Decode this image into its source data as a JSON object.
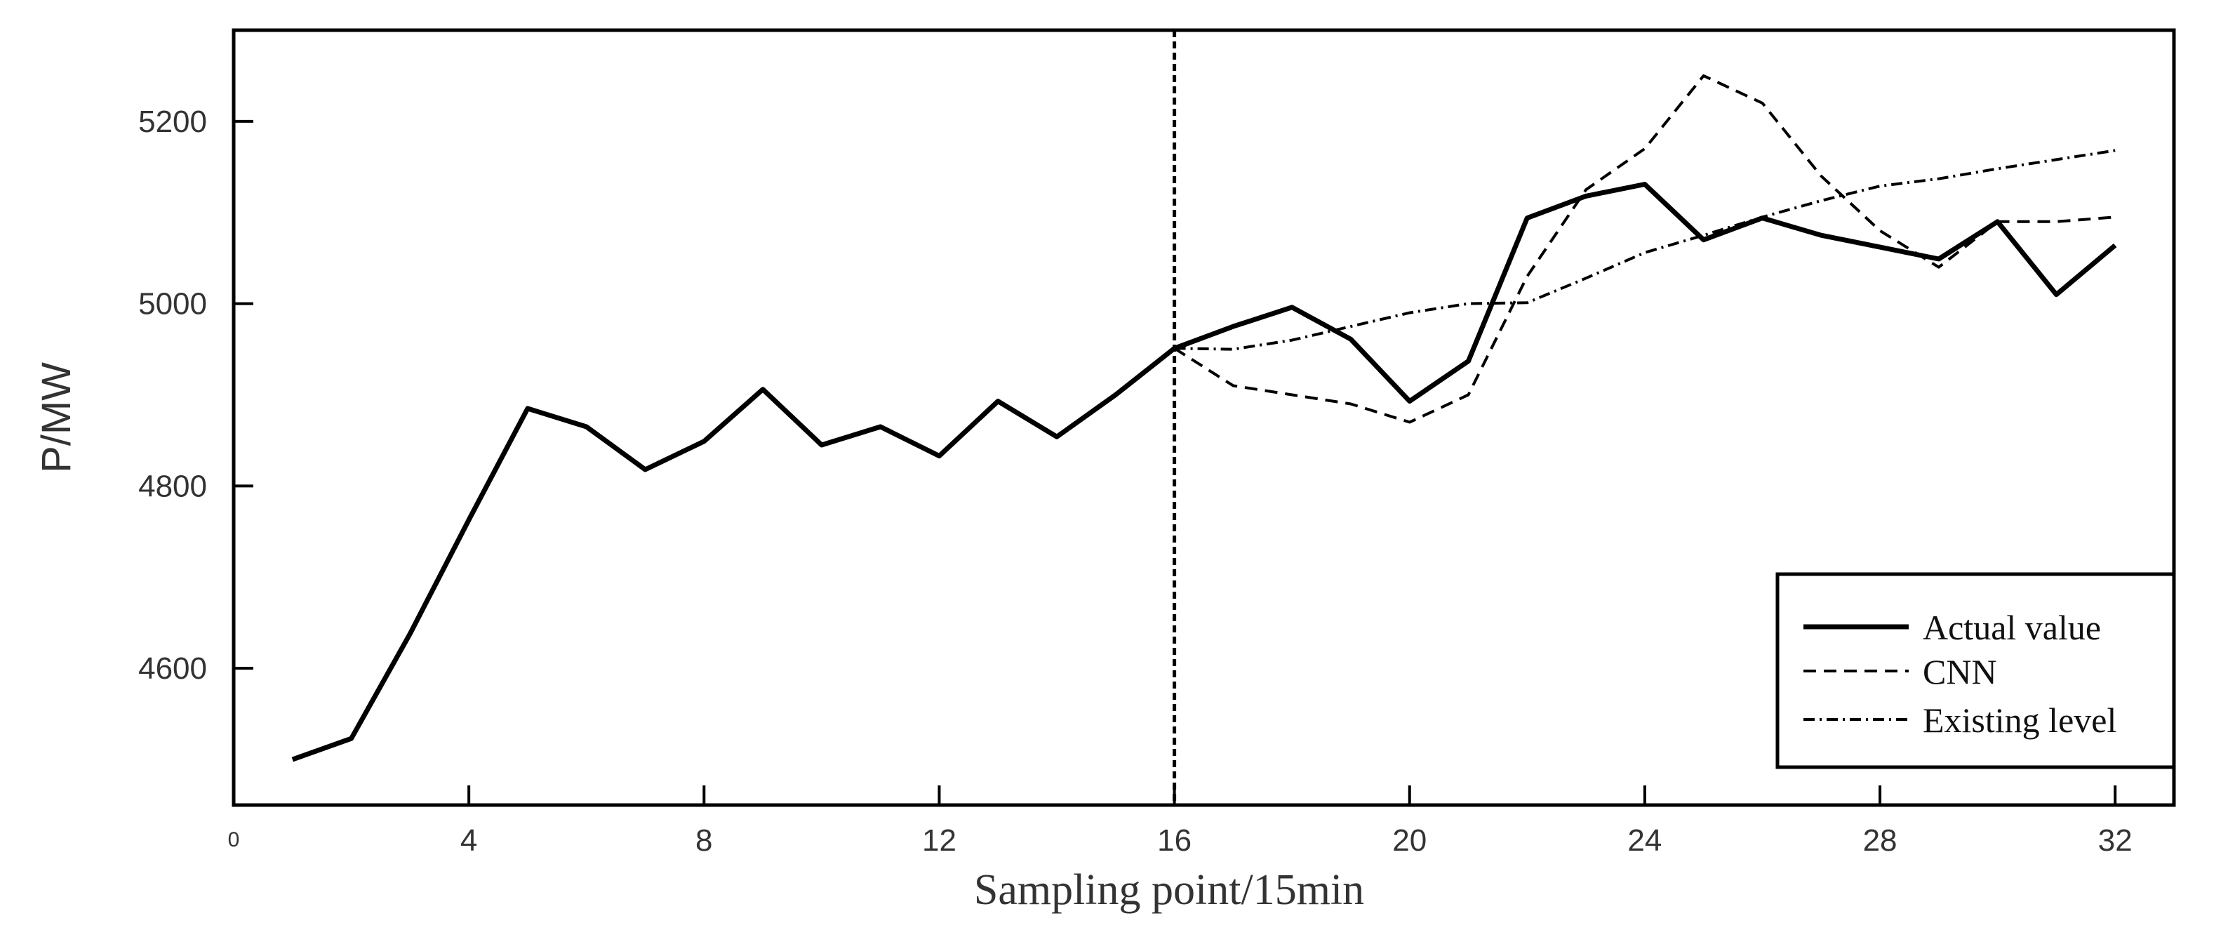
{
  "chart_data": {
    "type": "line",
    "xlabel": "Sampling point/15min",
    "ylabel": "P/MW",
    "xlim": [
      0,
      33
    ],
    "ylim": [
      4450,
      5300
    ],
    "x_ticks": [
      0,
      4,
      8,
      12,
      16,
      20,
      24,
      28,
      32
    ],
    "x_tick_labels": [
      "0",
      "4",
      "8",
      "12",
      "16",
      "20",
      "24",
      "28",
      "32"
    ],
    "y_ticks": [
      4600,
      4800,
      5000,
      5200
    ],
    "y_tick_labels": [
      "4600",
      "4800",
      "5000",
      "5200"
    ],
    "grid": false,
    "legend_position": "bottom-right",
    "vertical_marker_x": 16,
    "series": [
      {
        "name": "Actual value",
        "style": "solid",
        "x": [
          1,
          2,
          3,
          4,
          5,
          6,
          7,
          8,
          9,
          10,
          11,
          12,
          13,
          14,
          15,
          16,
          17,
          18,
          19,
          20,
          21,
          22,
          23,
          24,
          25,
          26,
          27,
          28,
          29,
          30,
          31,
          32
        ],
        "values": [
          4500,
          4523,
          4638,
          4763,
          4885,
          4865,
          4818,
          4849,
          4906,
          4845,
          4865,
          4833,
          4893,
          4854,
          4900,
          4951,
          4975,
          4996,
          4961,
          4893,
          4937,
          5094,
          5118,
          5131,
          5070,
          5094,
          5075,
          5062,
          5049,
          5090,
          5010,
          5064
        ]
      },
      {
        "name": "CNN",
        "style": "dashed",
        "x": [
          16,
          17,
          18,
          19,
          20,
          21,
          22,
          23,
          24,
          25,
          26,
          27,
          28,
          29,
          30,
          31,
          32
        ],
        "values": [
          4951,
          4910,
          4900,
          4890,
          4870,
          4900,
          5030,
          5125,
          5170,
          5250,
          5220,
          5140,
          5080,
          5040,
          5090,
          5090,
          5095
        ]
      },
      {
        "name": "Existing level",
        "style": "dashdot",
        "x": [
          16,
          17,
          18,
          19,
          20,
          21,
          22,
          23,
          24,
          25,
          26,
          27,
          28,
          29,
          30,
          31,
          32
        ],
        "values": [
          4951,
          4950,
          4960,
          4975,
          4990,
          5000,
          5001,
          5028,
          5056,
          5075,
          5095,
          5113,
          5129,
          5137,
          5148,
          5158,
          5168
        ]
      }
    ]
  }
}
